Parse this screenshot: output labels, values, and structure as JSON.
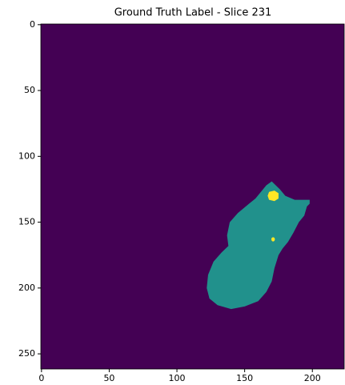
{
  "chart_data": {
    "type": "image",
    "title": "Ground Truth Label - Slice 231",
    "xlim": [
      -0.5,
      223.5
    ],
    "ylim": [
      261.5,
      -0.5
    ],
    "xticks": [
      0,
      50,
      100,
      150,
      200
    ],
    "yticks": [
      0,
      50,
      100,
      150,
      200,
      250
    ]
  }
}
